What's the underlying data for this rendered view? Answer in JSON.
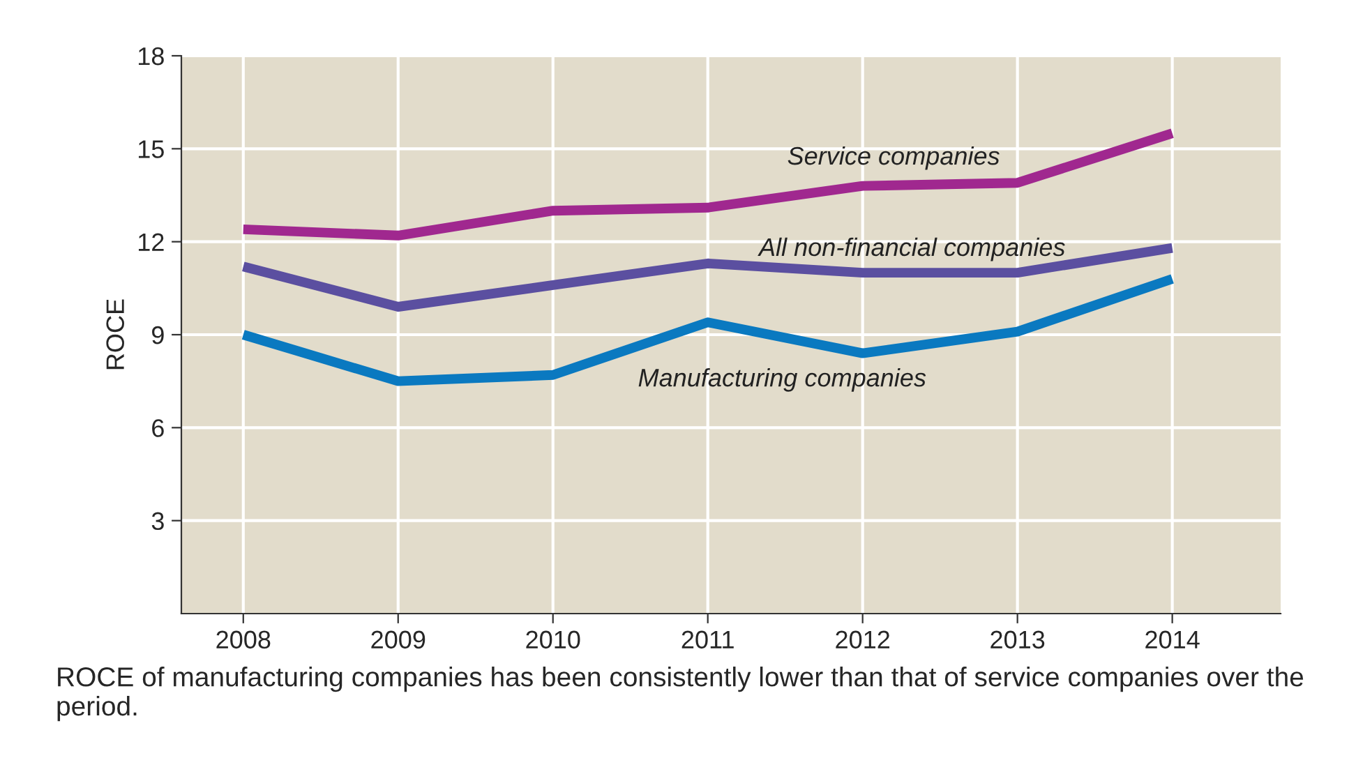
{
  "chart_data": {
    "type": "line",
    "ylabel": "ROCE",
    "x": [
      2008,
      2009,
      2010,
      2011,
      2012,
      2013,
      2014
    ],
    "series": [
      {
        "name": "Service companies",
        "color": "#a0288f",
        "values": [
          12.4,
          12.2,
          13.0,
          13.1,
          13.8,
          13.9,
          15.5
        ]
      },
      {
        "name": "All non-financial companies",
        "color": "#5b4fa0",
        "values": [
          11.2,
          9.9,
          10.6,
          11.3,
          11.0,
          11.0,
          11.8
        ]
      },
      {
        "name": "Manufacturing companies",
        "color": "#0a79c0",
        "values": [
          9.0,
          7.5,
          7.7,
          9.4,
          8.4,
          9.1,
          10.8
        ]
      }
    ],
    "xlim": [
      2007.6,
      2014.7
    ],
    "xticks": [
      2008,
      2009,
      2010,
      2011,
      2012,
      2013,
      2014
    ],
    "ylim": [
      0,
      18
    ],
    "yticks": [
      3,
      6,
      9,
      12,
      15,
      18
    ],
    "grid": true,
    "legend": false,
    "marker": "none",
    "line_style": "solid",
    "annotations": [
      "ROCE of manufacturing companies has been consistently lower than that of service companies over the period."
    ]
  }
}
